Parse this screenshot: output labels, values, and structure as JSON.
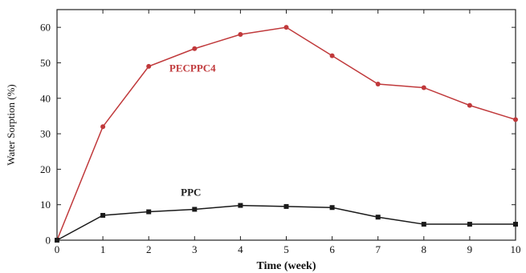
{
  "chart_data": {
    "type": "line",
    "title": "",
    "xlabel": "Time (week)",
    "ylabel": "Water Sorption (%)",
    "xlim": [
      0,
      10
    ],
    "ylim": [
      0,
      65
    ],
    "x_ticks": [
      0,
      1,
      2,
      3,
      4,
      5,
      6,
      7,
      8,
      9,
      10
    ],
    "y_ticks": [
      0,
      10,
      20,
      30,
      40,
      50,
      60
    ],
    "grid": false,
    "legend": "none",
    "series": [
      {
        "name": "PECPPC4",
        "color": "#c0393b",
        "marker": "circle",
        "x": [
          0,
          1,
          2,
          3,
          4,
          5,
          6,
          7,
          8,
          9,
          10
        ],
        "values": [
          0,
          32,
          49,
          54,
          58,
          60,
          52,
          44,
          43,
          38,
          34
        ]
      },
      {
        "name": "PPC",
        "color": "#1a1a1a",
        "marker": "square",
        "x": [
          0,
          1,
          2,
          3,
          4,
          5,
          6,
          7,
          8,
          9,
          10
        ],
        "values": [
          0,
          7,
          8,
          8.7,
          9.8,
          9.5,
          9.2,
          6.5,
          4.5,
          4.5,
          4.5
        ]
      }
    ]
  }
}
